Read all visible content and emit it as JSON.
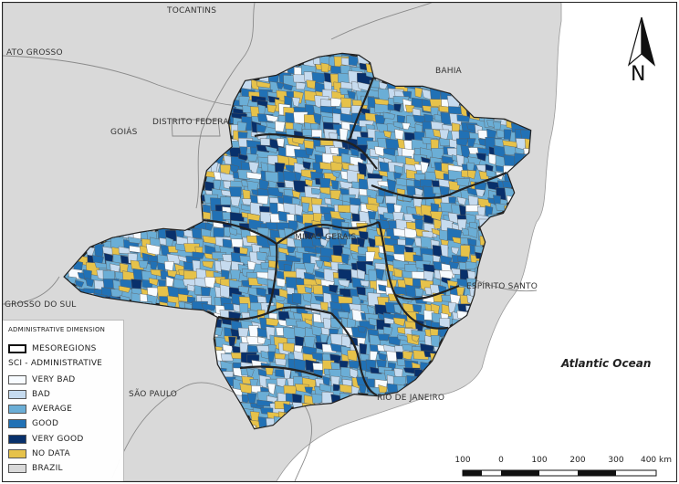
{
  "map": {
    "colors": {
      "background_land": "#d9d9d9",
      "ocean": "#ffffff",
      "very_bad": "#f7fbff",
      "bad": "#c6dbef",
      "average": "#6baed6",
      "good": "#2171b5",
      "very_good": "#08306b",
      "no_data": "#e6c24a",
      "borders": "#5a5a5a"
    },
    "place_labels": {
      "tocantins": "TOCANTINS",
      "mato_grosso": "ATO GROSSO",
      "bahia": "BAHIA",
      "goias": "GOIÁS",
      "distrito_federal": "DISTRITO FEDERAL",
      "minas_gerais": "MINAS GERAIS",
      "espirito_santo": "ESPÍRITO SANTO",
      "mato_grosso_do_sul": "GROSSO DO SUL",
      "sao_paulo": "SÃO PAULO",
      "rio_de_janeiro": "RIO DE JANEIRO"
    },
    "ocean_label": "Atlantic Ocean",
    "north_label": "N"
  },
  "legend": {
    "title": "ADMINISTRATIVE DIMENSION",
    "mesoregions": "MESOREGIONS",
    "subtitle": "SCI - ADMINISTRATIVE",
    "items": [
      {
        "label": "VERY BAD",
        "color": "#f7fbff"
      },
      {
        "label": "BAD",
        "color": "#c6dbef"
      },
      {
        "label": "AVERAGE",
        "color": "#6baed6"
      },
      {
        "label": "GOOD",
        "color": "#2171b5"
      },
      {
        "label": "VERY GOOD",
        "color": "#08306b"
      },
      {
        "label": "NO DATA",
        "color": "#e6c24a"
      },
      {
        "label": "BRAZIL",
        "color": "#d9d9d9"
      }
    ]
  },
  "scale": {
    "labels": [
      "100",
      "0",
      "100",
      "200",
      "300",
      "400 km"
    ]
  }
}
